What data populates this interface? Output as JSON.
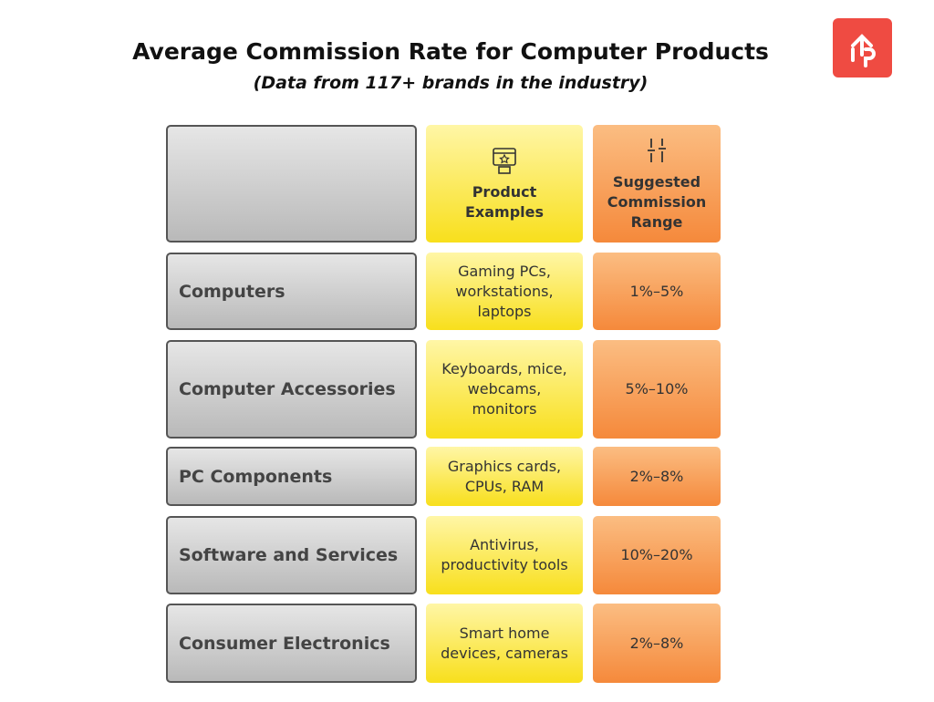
{
  "header": {
    "title": "Average Commission Rate for Computer Products",
    "subtitle": "(Data from 117+ brands in the industry)"
  },
  "table": {
    "header": [
      "Product Examples",
      "Suggested Commission Range"
    ],
    "rows": [
      [
        "Computers",
        "Gaming PCs, workstations, laptops",
        "1%–5%"
      ],
      [
        "Computer Accessories",
        "Keyboards, mice, webcams, monitors",
        "5%–10%"
      ],
      [
        "PC Components",
        "Graphics cards, CPUs, RAM",
        "2%–8%"
      ],
      [
        "Software and Services",
        "Antivirus, productivity tools",
        "10%–20%"
      ],
      [
        "Consumer Electronics",
        "Smart home devices, cameras",
        "2%–8%"
      ]
    ]
  }
}
